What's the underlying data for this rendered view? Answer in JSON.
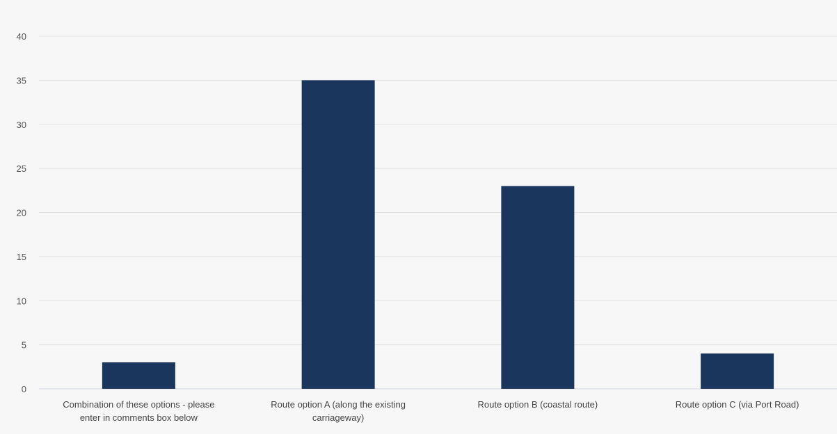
{
  "chart_data": {
    "type": "bar",
    "title": "",
    "xlabel": "",
    "ylabel": "",
    "categories": [
      [
        "Combination of these options - please",
        "enter in comments box below"
      ],
      [
        "Route option A (along the existing",
        "carriageway)"
      ],
      [
        "Route option B (coastal route)"
      ],
      [
        "Route option C (via Port Road)"
      ]
    ],
    "values": [
      3,
      35,
      23,
      4
    ],
    "ylim": [
      0,
      40
    ],
    "yticks": [
      0,
      5,
      10,
      15,
      20,
      25,
      30,
      35,
      40
    ],
    "grid": true,
    "legend": "none",
    "colors": {
      "bar": "#1b365d",
      "grid": "#e3e3e3",
      "axis": "#cfd4e0",
      "background": "#f7f7f7"
    }
  }
}
